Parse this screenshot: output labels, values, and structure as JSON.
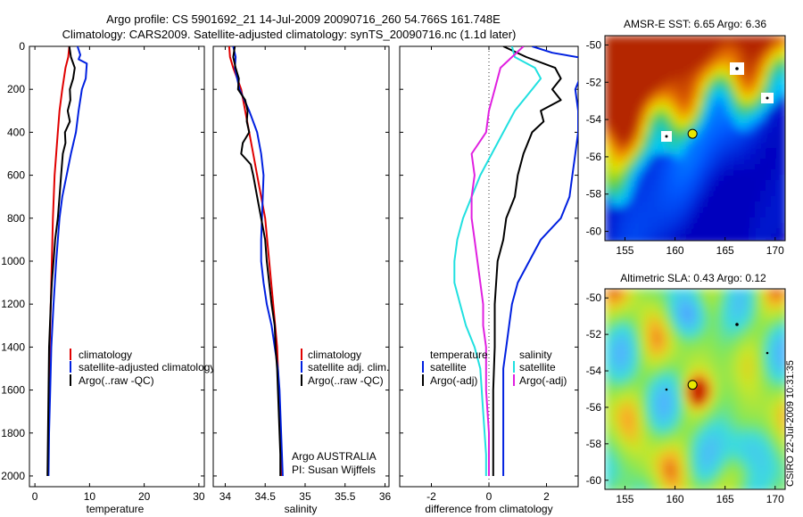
{
  "header": {
    "line1": "Argo profile: CS 5901692_21 14-Jul-2009 20090716_260 54.766S 161.748E",
    "line2": "Climatology: CARS2009. Satellite-adjusted climatology: synTS_20090716.nc (1.1d later)"
  },
  "watermark": "CSIRO 22-Jul-2009 10:31:35",
  "colors": {
    "red": "#e00000",
    "blue": "#0020e0",
    "black": "#000000",
    "cyan": "#20e0e0",
    "magenta": "#e020e0"
  },
  "chart_data": [
    {
      "id": "temperature",
      "type": "line",
      "xlabel": "temperature",
      "xlim": [
        -1,
        31
      ],
      "ylim": [
        2050,
        0
      ],
      "xticks": [
        0,
        10,
        20,
        30
      ],
      "yticks": [
        0,
        200,
        400,
        600,
        800,
        1000,
        1200,
        1400,
        1600,
        1800,
        2000
      ],
      "legend": {
        "placement": "lower-right",
        "entries": [
          "climatology",
          "satellite-adjusted climatology",
          "Argo(..raw -QC)"
        ]
      },
      "series": [
        {
          "name": "climatology",
          "color": "red",
          "points": [
            [
              6.3,
              0
            ],
            [
              6.1,
              50
            ],
            [
              5.6,
              100
            ],
            [
              5.0,
              200
            ],
            [
              4.5,
              300
            ],
            [
              4.2,
              400
            ],
            [
              3.9,
              500
            ],
            [
              3.6,
              600
            ],
            [
              3.3,
              800
            ],
            [
              3.1,
              1000
            ],
            [
              2.9,
              1200
            ],
            [
              2.7,
              1400
            ],
            [
              2.6,
              1600
            ],
            [
              2.5,
              1800
            ],
            [
              2.4,
              2000
            ]
          ]
        },
        {
          "name": "satellite-adjusted climatology",
          "color": "blue",
          "points": [
            [
              7.8,
              0
            ],
            [
              8.3,
              40
            ],
            [
              8.0,
              60
            ],
            [
              9.5,
              80
            ],
            [
              9.3,
              150
            ],
            [
              8.6,
              200
            ],
            [
              8.0,
              300
            ],
            [
              7.5,
              400
            ],
            [
              6.6,
              500
            ],
            [
              5.8,
              600
            ],
            [
              5.0,
              700
            ],
            [
              4.5,
              800
            ],
            [
              3.9,
              1000
            ],
            [
              3.4,
              1200
            ],
            [
              3.0,
              1400
            ],
            [
              2.8,
              1600
            ],
            [
              2.6,
              1800
            ],
            [
              2.5,
              2000
            ]
          ]
        },
        {
          "name": "Argo(..raw -QC)",
          "color": "black",
          "points": [
            [
              6.3,
              0
            ],
            [
              6.6,
              50
            ],
            [
              7.3,
              100
            ],
            [
              7.0,
              150
            ],
            [
              6.4,
              200
            ],
            [
              6.5,
              250
            ],
            [
              6.0,
              300
            ],
            [
              6.4,
              350
            ],
            [
              5.5,
              400
            ],
            [
              5.6,
              450
            ],
            [
              5.1,
              500
            ],
            [
              4.8,
              600
            ],
            [
              4.5,
              700
            ],
            [
              4.2,
              800
            ],
            [
              3.7,
              900
            ],
            [
              3.4,
              1000
            ],
            [
              3.1,
              1100
            ],
            [
              2.9,
              1200
            ],
            [
              2.6,
              1400
            ],
            [
              2.5,
              1600
            ],
            [
              2.4,
              1800
            ],
            [
              2.3,
              2000
            ]
          ]
        }
      ]
    },
    {
      "id": "salinity",
      "type": "line",
      "xlabel": "salinity",
      "xlim": [
        33.85,
        36.05
      ],
      "ylim": [
        2050,
        0
      ],
      "xticks": [
        34,
        34.5,
        35,
        35.5,
        36
      ],
      "legend": {
        "placement": "lower-right",
        "entries": [
          "climatology",
          "satellite adj. clim.",
          "Argo(..raw -QC)"
        ]
      },
      "annotations": [
        "Argo AUSTRALIA",
        "PI: Susan Wijffels"
      ],
      "series": [
        {
          "name": "climatology",
          "color": "red",
          "points": [
            [
              34.05,
              0
            ],
            [
              34.06,
              50
            ],
            [
              34.1,
              100
            ],
            [
              34.15,
              150
            ],
            [
              34.2,
              200
            ],
            [
              34.25,
              300
            ],
            [
              34.3,
              400
            ],
            [
              34.35,
              500
            ],
            [
              34.4,
              600
            ],
            [
              34.45,
              700
            ],
            [
              34.5,
              800
            ],
            [
              34.55,
              1000
            ],
            [
              34.6,
              1200
            ],
            [
              34.65,
              1400
            ],
            [
              34.67,
              1600
            ],
            [
              34.69,
              1800
            ],
            [
              34.7,
              2000
            ]
          ]
        },
        {
          "name": "satellite adj. clim.",
          "color": "blue",
          "points": [
            [
              34.1,
              0
            ],
            [
              34.13,
              50
            ],
            [
              34.12,
              100
            ],
            [
              34.18,
              200
            ],
            [
              34.3,
              300
            ],
            [
              34.4,
              400
            ],
            [
              34.45,
              500
            ],
            [
              34.48,
              600
            ],
            [
              34.47,
              700
            ],
            [
              34.46,
              800
            ],
            [
              34.45,
              900
            ],
            [
              34.45,
              1000
            ],
            [
              34.48,
              1100
            ],
            [
              34.52,
              1200
            ],
            [
              34.58,
              1300
            ],
            [
              34.62,
              1400
            ],
            [
              34.66,
              1500
            ],
            [
              34.68,
              1600
            ],
            [
              34.7,
              1800
            ],
            [
              34.72,
              2000
            ]
          ]
        },
        {
          "name": "Argo(..raw -QC)",
          "color": "black",
          "points": [
            [
              34.12,
              0
            ],
            [
              34.1,
              50
            ],
            [
              34.13,
              100
            ],
            [
              34.17,
              150
            ],
            [
              34.16,
              200
            ],
            [
              34.25,
              250
            ],
            [
              34.28,
              300
            ],
            [
              34.27,
              350
            ],
            [
              34.3,
              400
            ],
            [
              34.22,
              450
            ],
            [
              34.2,
              500
            ],
            [
              34.32,
              550
            ],
            [
              34.35,
              600
            ],
            [
              34.4,
              700
            ],
            [
              34.45,
              800
            ],
            [
              34.5,
              900
            ],
            [
              34.52,
              1000
            ],
            [
              34.55,
              1100
            ],
            [
              34.58,
              1200
            ],
            [
              34.62,
              1300
            ],
            [
              34.63,
              1400
            ],
            [
              34.65,
              1500
            ],
            [
              34.66,
              1600
            ],
            [
              34.67,
              1700
            ],
            [
              34.68,
              1800
            ],
            [
              34.69,
              1900
            ],
            [
              34.69,
              2000
            ]
          ]
        }
      ]
    },
    {
      "id": "difference",
      "type": "line",
      "xlabel": "difference from climatology",
      "xlim": [
        -3.1,
        3.1
      ],
      "ylim": [
        2050,
        0
      ],
      "xticks": [
        -2,
        0,
        2
      ],
      "legend": {
        "placement": "lower-center",
        "groups": [
          {
            "title": "temperature",
            "entries": [
              "satellite",
              "Argo(-adj)"
            ]
          },
          {
            "title": "salinity",
            "entries": [
              "satellite",
              "Argo(-adj)"
            ]
          }
        ]
      },
      "series": [
        {
          "name": "temperature satellite",
          "color": "blue",
          "points": [
            [
              1.5,
              0
            ],
            [
              2.2,
              30
            ],
            [
              3.5,
              60
            ],
            [
              3.3,
              100
            ],
            [
              3.0,
              200
            ],
            [
              3.1,
              300
            ],
            [
              3.1,
              400
            ],
            [
              3.0,
              500
            ],
            [
              2.9,
              600
            ],
            [
              2.8,
              700
            ],
            [
              2.5,
              800
            ],
            [
              1.8,
              900
            ],
            [
              1.4,
              1000
            ],
            [
              1.0,
              1100
            ],
            [
              0.8,
              1200
            ],
            [
              0.7,
              1300
            ],
            [
              0.6,
              1400
            ],
            [
              0.5,
              1500
            ],
            [
              0.5,
              1700
            ],
            [
              0.5,
              2000
            ]
          ]
        },
        {
          "name": "temperature Argo(-adj)",
          "color": "black",
          "points": [
            [
              0.5,
              0
            ],
            [
              1.3,
              50
            ],
            [
              2.3,
              100
            ],
            [
              2.5,
              150
            ],
            [
              2.2,
              200
            ],
            [
              2.5,
              250
            ],
            [
              1.8,
              300
            ],
            [
              1.9,
              350
            ],
            [
              1.5,
              400
            ],
            [
              1.2,
              500
            ],
            [
              1.0,
              600
            ],
            [
              0.9,
              700
            ],
            [
              0.6,
              800
            ],
            [
              0.5,
              900
            ],
            [
              0.3,
              1000
            ],
            [
              0.2,
              1200
            ],
            [
              0.2,
              1400
            ],
            [
              0.15,
              1600
            ],
            [
              0.15,
              1800
            ],
            [
              0.15,
              2000
            ]
          ]
        },
        {
          "name": "salinity satellite",
          "color": "cyan",
          "points": [
            [
              0.8,
              0
            ],
            [
              0.9,
              50
            ],
            [
              1.6,
              100
            ],
            [
              1.8,
              150
            ],
            [
              1.5,
              200
            ],
            [
              0.9,
              300
            ],
            [
              0.5,
              400
            ],
            [
              0.1,
              500
            ],
            [
              -0.3,
              600
            ],
            [
              -0.6,
              700
            ],
            [
              -0.9,
              800
            ],
            [
              -1.1,
              900
            ],
            [
              -1.2,
              1000
            ],
            [
              -1.2,
              1100
            ],
            [
              -1.0,
              1200
            ],
            [
              -0.8,
              1300
            ],
            [
              -0.5,
              1400
            ],
            [
              -0.3,
              1500
            ],
            [
              -0.2,
              1700
            ],
            [
              -0.1,
              1900
            ],
            [
              -0.1,
              2000
            ]
          ]
        },
        {
          "name": "salinity Argo(-adj)",
          "color": "magenta",
          "points": [
            [
              1.2,
              0
            ],
            [
              0.8,
              50
            ],
            [
              0.4,
              100
            ],
            [
              0.2,
              200
            ],
            [
              0.0,
              300
            ],
            [
              -0.1,
              400
            ],
            [
              -0.6,
              500
            ],
            [
              -0.5,
              600
            ],
            [
              -0.6,
              700
            ],
            [
              -0.6,
              800
            ],
            [
              -0.5,
              900
            ],
            [
              -0.4,
              1000
            ],
            [
              -0.3,
              1100
            ],
            [
              -0.2,
              1200
            ],
            [
              -0.2,
              1300
            ],
            [
              -0.1,
              1400
            ],
            [
              -0.1,
              1600
            ],
            [
              0.0,
              1800
            ],
            [
              0.0,
              2000
            ]
          ]
        }
      ]
    },
    {
      "id": "sst-map",
      "type": "heatmap",
      "title": "AMSR-E SST: 6.65 Argo: 6.36",
      "xlim": [
        153,
        171
      ],
      "ylim": [
        -60.5,
        -49.5
      ],
      "xticks": [
        155,
        160,
        165,
        170
      ],
      "yticks": [
        -50,
        -52,
        -54,
        -56,
        -58,
        -60
      ],
      "argo_position": [
        161.748,
        -54.766
      ]
    },
    {
      "id": "sla-map",
      "type": "heatmap",
      "title": "Altimetric SLA: 0.43 Argo: 0.12",
      "xlim": [
        153,
        171
      ],
      "ylim": [
        -60.5,
        -49.5
      ],
      "xticks": [
        155,
        160,
        165,
        170
      ],
      "yticks": [
        -50,
        -52,
        -54,
        -56,
        -58,
        -60
      ],
      "argo_position": [
        161.748,
        -54.766
      ]
    }
  ]
}
